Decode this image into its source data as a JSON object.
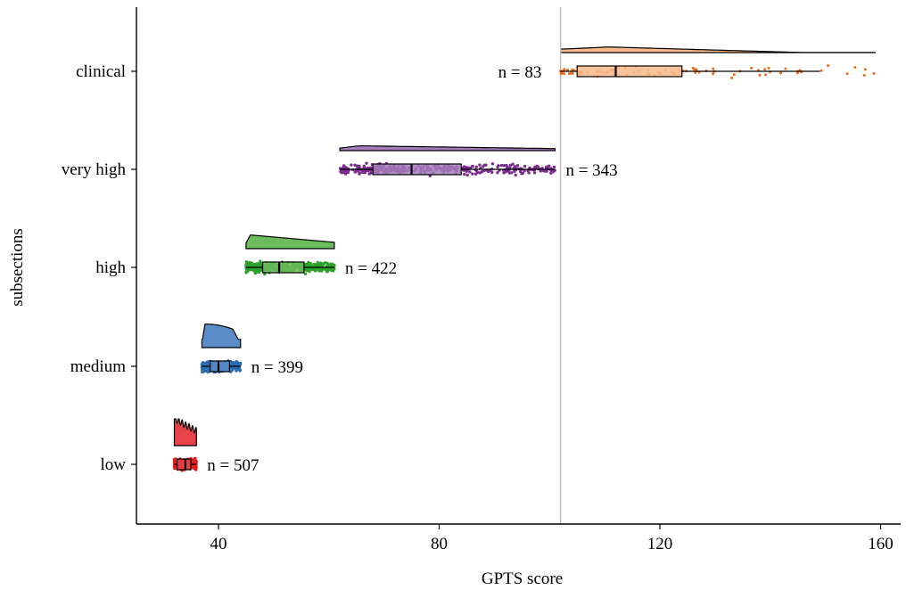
{
  "chart_data": {
    "type": "raincloud",
    "xlabel": "GPTS score",
    "ylabel": "subsections",
    "xlim": [
      25,
      164
    ],
    "x_ticks": [
      40,
      80,
      120,
      160
    ],
    "reference_line": 102,
    "grid": false,
    "legend": "none",
    "groups": [
      {
        "name": "low",
        "n_label": "n = 507",
        "n": 507,
        "color": "#e31a1c",
        "fill": "#e8424a",
        "min": 32,
        "max": 36,
        "q1": 32.5,
        "median": 34,
        "q3": 35,
        "whisker_low": 32,
        "whisker_high": 36
      },
      {
        "name": "medium",
        "n_label": "n = 399",
        "n": 399,
        "color": "#2b6cb0",
        "fill": "#5b8cc7",
        "min": 37,
        "max": 44,
        "q1": 38.5,
        "median": 40,
        "q3": 42,
        "whisker_low": 37,
        "whisker_high": 44
      },
      {
        "name": "high",
        "n_label": "n = 422",
        "n": 422,
        "color": "#2ea02c",
        "fill": "#6cbb5c",
        "min": 45,
        "max": 61,
        "q1": 48,
        "median": 51,
        "q3": 55.5,
        "whisker_low": 45,
        "whisker_high": 61
      },
      {
        "name": "very high",
        "n_label": "n = 343",
        "n": 343,
        "color": "#7b2d8f",
        "fill": "#a37cba",
        "min": 62,
        "max": 101,
        "q1": 68,
        "median": 75,
        "q3": 84,
        "whisker_low": 62,
        "whisker_high": 101
      },
      {
        "name": "clinical",
        "n_label": "n = 83",
        "n": 83,
        "color": "#f16913",
        "fill": "#f8b88a",
        "min": 102,
        "max": 159,
        "q1": 105,
        "median": 112,
        "q3": 124,
        "whisker_low": 102,
        "whisker_high": 149
      }
    ]
  }
}
